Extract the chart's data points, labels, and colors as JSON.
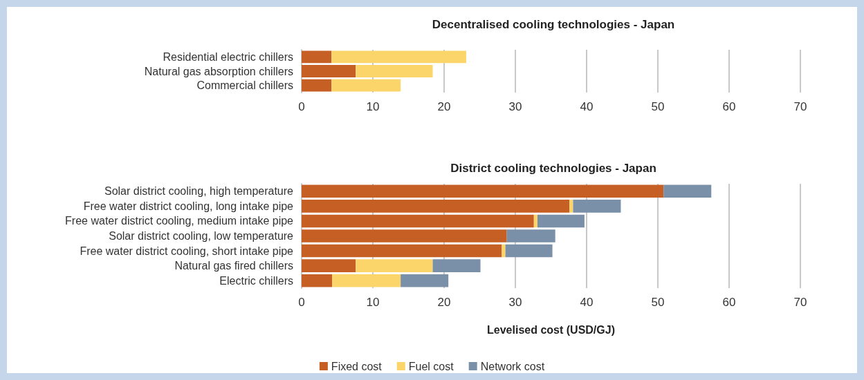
{
  "chart_data": [
    {
      "type": "bar",
      "orientation": "horizontal",
      "stacked": true,
      "title": "Decentralised cooling technologies - Japan",
      "categories": [
        "Residential electric chillers",
        "Natural gas absorption chillers",
        "Commercial chillers"
      ],
      "series": [
        {
          "color": "#c55f24",
          "values": [
            4.2,
            7.6,
            4.2
          ]
        },
        {
          "color": "#fcd56a",
          "values": [
            18.9,
            10.8,
            9.7
          ]
        }
      ],
      "xlim": [
        0,
        70
      ],
      "xticks": [
        0,
        10,
        20,
        30,
        40,
        50,
        60,
        70
      ],
      "grid": "x",
      "legend": false
    },
    {
      "type": "bar",
      "orientation": "horizontal",
      "stacked": true,
      "title": "District cooling technologies - Japan",
      "xlabel": "Levelised cost (USD/GJ)",
      "categories": [
        "Solar district cooling, high temperature",
        "Free water district cooling, long intake pipe",
        "Free water district cooling, medium intake pipe",
        "Solar district cooling, low temperature",
        "Free water district cooling, short intake pipe",
        "Natural gas fired chillers",
        "Electric chillers"
      ],
      "series": [
        {
          "name": "Fixed cost",
          "color": "#c55f24",
          "values": [
            50.8,
            37.6,
            32.6,
            28.8,
            28.1,
            7.6,
            4.3
          ]
        },
        {
          "name": "Fuel cost",
          "color": "#fcd56a",
          "values": [
            0,
            0.5,
            0.5,
            0,
            0.5,
            10.8,
            9.6
          ]
        },
        {
          "name": "Network cost",
          "color": "#7a8fa8",
          "values": [
            6.7,
            6.7,
            6.6,
            6.8,
            6.6,
            6.7,
            6.7
          ]
        }
      ],
      "xlim": [
        0,
        70
      ],
      "xticks": [
        0,
        10,
        20,
        30,
        40,
        50,
        60,
        70
      ],
      "grid": "x",
      "legend": "bottom"
    }
  ]
}
